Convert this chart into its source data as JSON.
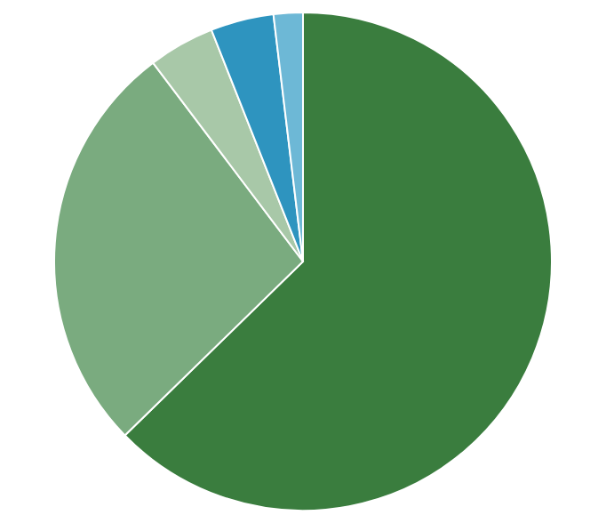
{
  "chart_data": {
    "type": "pie",
    "categories": [
      null,
      null,
      null,
      null,
      null
    ],
    "values": [
      62.7,
      27.0,
      4.3,
      4.1,
      1.9
    ],
    "colors": [
      "#3a7d3e",
      "#7aab7f",
      "#a8c8a8",
      "#2e94bf",
      "#6db8d6"
    ]
  }
}
